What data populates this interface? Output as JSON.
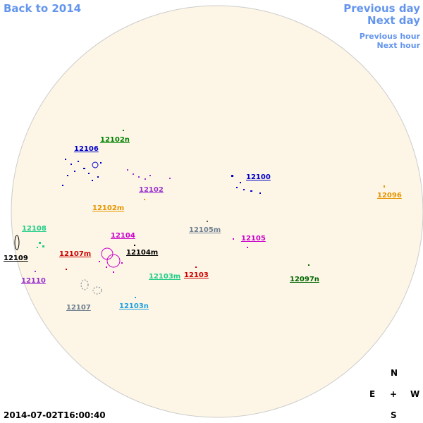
{
  "nav": {
    "back_year": "Back to 2014",
    "previous_day": "Previous day",
    "next_day": "Next day",
    "previous_hour": "Previous hour",
    "next_hour": "Next hour"
  },
  "regions": [
    {
      "label": "12102n",
      "color": "#008000"
    },
    {
      "label": "12106",
      "color": "#0000cc"
    },
    {
      "label": "12100",
      "color": "#0000cc"
    },
    {
      "label": "12102",
      "color": "#9933cc"
    },
    {
      "label": "12096",
      "color": "#e69500"
    },
    {
      "label": "12102m",
      "color": "#e69500"
    },
    {
      "label": "12108",
      "color": "#22cc88"
    },
    {
      "label": "12105m",
      "color": "#708090"
    },
    {
      "label": "12104",
      "color": "#cc00cc"
    },
    {
      "label": "12105",
      "color": "#cc00cc"
    },
    {
      "label": "12109",
      "color": "#000000"
    },
    {
      "label": "12107m",
      "color": "#cc0000"
    },
    {
      "label": "12104m",
      "color": "#000000"
    },
    {
      "label": "12103m",
      "color": "#22cc88"
    },
    {
      "label": "12103",
      "color": "#cc0000"
    },
    {
      "label": "12110",
      "color": "#9933cc"
    },
    {
      "label": "12097n",
      "color": "#006600"
    },
    {
      "label": "12107",
      "color": "#708090"
    },
    {
      "label": "12103n",
      "color": "#20a0e0"
    }
  ],
  "compass": {
    "north": "N",
    "east": "E",
    "center": "+",
    "west": "W",
    "south": "S"
  },
  "timestamp": "2014-07-02T16:00:40"
}
